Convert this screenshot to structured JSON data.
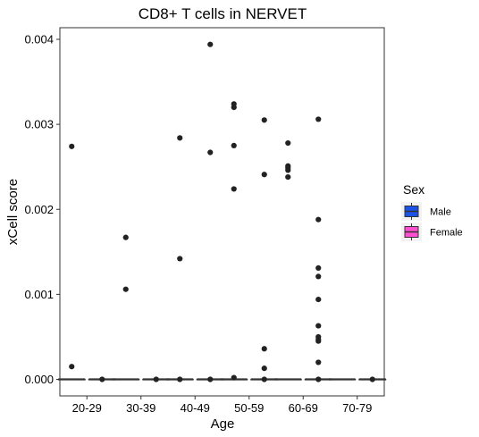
{
  "chart_data": {
    "type": "box",
    "title": "CD8+ T cells in NERVET",
    "xlabel": "Age",
    "ylabel": "xCell score",
    "categories": [
      "20-29",
      "30-39",
      "40-49",
      "50-59",
      "60-69",
      "70-79"
    ],
    "ylim": [
      -0.0002,
      0.0041
    ],
    "yticks": [
      0.0,
      0.001,
      0.002,
      0.003,
      0.004
    ],
    "ytick_labels": [
      "0.000",
      "0.001",
      "0.002",
      "0.003",
      "0.004"
    ],
    "grid": false,
    "legend": {
      "title": "Sex",
      "position": "right",
      "entries": [
        {
          "label": "Male",
          "color": "#1a53e6"
        },
        {
          "label": "Female",
          "color": "#ff4fd0"
        }
      ]
    },
    "series": [
      {
        "name": "Male",
        "color": "#1a53e6",
        "boxes": [
          {
            "category": "20-29",
            "min": 0,
            "q1": 0,
            "median": 0,
            "q3": 0,
            "max": 0,
            "outliers": [
              0.00274,
              0.00015
            ]
          },
          {
            "category": "30-39",
            "min": 0,
            "q1": 0,
            "median": 0,
            "q3": 0,
            "max": 0,
            "outliers": [
              0.00167,
              0.00106
            ]
          },
          {
            "category": "40-49",
            "min": 0,
            "q1": 0,
            "median": 0,
            "q3": 0,
            "max": 0,
            "outliers": [
              0.00284,
              0.00142,
              0
            ]
          },
          {
            "category": "50-59",
            "min": 0,
            "q1": 0,
            "median": 0,
            "q3": 0,
            "max": 0,
            "outliers": [
              0.00324,
              0.0032,
              0.00275,
              0.00224,
              2e-05
            ]
          },
          {
            "category": "60-69",
            "min": 0,
            "q1": 0,
            "median": 0,
            "q3": 0,
            "max": 0,
            "outliers": [
              0.00278,
              0.00251,
              0.00249,
              0.00246,
              0.00238
            ]
          },
          {
            "category": "70-79",
            "min": 0,
            "q1": 0,
            "median": 0,
            "q3": 0,
            "max": 0,
            "outliers": []
          }
        ]
      },
      {
        "name": "Female",
        "color": "#ff4fd0",
        "boxes": [
          {
            "category": "20-29",
            "min": 0,
            "q1": 0,
            "median": 0,
            "q3": 0,
            "max": 0,
            "outliers": [
              0
            ]
          },
          {
            "category": "30-39",
            "min": 0,
            "q1": 0,
            "median": 0,
            "q3": 0,
            "max": 0,
            "outliers": [
              0
            ]
          },
          {
            "category": "40-49",
            "min": 0,
            "q1": 0,
            "median": 0,
            "q3": 0,
            "max": 0,
            "outliers": [
              0.00394,
              0.00267,
              0
            ]
          },
          {
            "category": "50-59",
            "min": 0,
            "q1": 0,
            "median": 0,
            "q3": 0,
            "max": 0,
            "outliers": [
              0.00305,
              0.00241,
              0.00036,
              0.00013,
              0
            ]
          },
          {
            "category": "60-69",
            "min": 0,
            "q1": 0,
            "median": 0,
            "q3": 0,
            "max": 0,
            "outliers": [
              0.00306,
              0.00188,
              0.00131,
              0.00121,
              0.00094,
              0.00063,
              0.0005,
              0.00047,
              0.00045,
              0.0002,
              0
            ]
          },
          {
            "category": "70-79",
            "min": 0,
            "q1": 0,
            "median": 0,
            "q3": 0,
            "max": 0,
            "outliers": [
              0
            ]
          }
        ]
      }
    ]
  }
}
